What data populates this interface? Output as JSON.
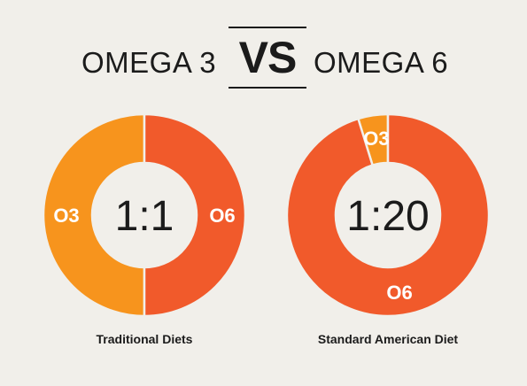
{
  "header": {
    "left_label": "OMEGA 3",
    "vs_label": "VS",
    "right_label": "OMEGA 6"
  },
  "colors": {
    "omega3": "#f7941d",
    "omega6": "#f15a2b",
    "background": "#f1efea"
  },
  "chart_data": [
    {
      "type": "pie",
      "categories": [
        "O3",
        "O6"
      ],
      "values": [
        1,
        1
      ],
      "center_label": "1:1",
      "caption": "Traditional Diets"
    },
    {
      "type": "pie",
      "categories": [
        "O3",
        "O6"
      ],
      "values": [
        1,
        20
      ],
      "center_label": "1:20",
      "caption": "Standard American Diet"
    }
  ]
}
